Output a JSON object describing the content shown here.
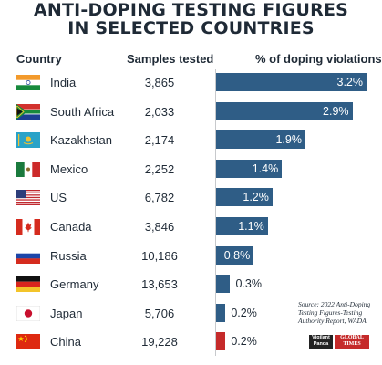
{
  "title": {
    "line1": "ANTI-DOPING TESTING FIGURES",
    "line2": "IN SELECTED COUNTRIES"
  },
  "headers": {
    "country": "Country",
    "samples": "Samples tested",
    "pct": "% of doping violations"
  },
  "chart_data": {
    "type": "bar",
    "title": "ANTI-DOPING TESTING FIGURES IN SELECTED COUNTRIES",
    "orientation": "horizontal",
    "categories": [
      "India",
      "South Africa",
      "Kazakhstan",
      "Mexico",
      "US",
      "Canada",
      "Russia",
      "Germany",
      "Japan",
      "China"
    ],
    "samples_tested": [
      "3,865",
      "2,033",
      "2,174",
      "2,252",
      "6,782",
      "3,846",
      "10,186",
      "13,653",
      "5,706",
      "19,228"
    ],
    "values": [
      3.2,
      2.9,
      1.9,
      1.4,
      1.2,
      1.1,
      0.8,
      0.3,
      0.2,
      0.2
    ],
    "value_labels": [
      "3.2%",
      "2.9%",
      "1.9%",
      "1.4%",
      "1.2%",
      "1.1%",
      "0.8%",
      "0.3%",
      "0.2%",
      "0.2%"
    ],
    "xlim": [
      0,
      3.2
    ],
    "bar_color": "#2f5d86",
    "highlight_color": "#c52a2a",
    "highlight_category": "China",
    "flag_icons": [
      "india-flag-icon",
      "south-africa-flag-icon",
      "kazakhstan-flag-icon",
      "mexico-flag-icon",
      "us-flag-icon",
      "canada-flag-icon",
      "russia-flag-icon",
      "germany-flag-icon",
      "japan-flag-icon",
      "china-flag-icon"
    ]
  },
  "source": "Source: 2022 Anti-Doping Testing Figures-Testing Authority Report, WADA",
  "logos": {
    "vigilant_panda": "Vigilant Panda",
    "global_times": "GLOBAL TIMES"
  }
}
